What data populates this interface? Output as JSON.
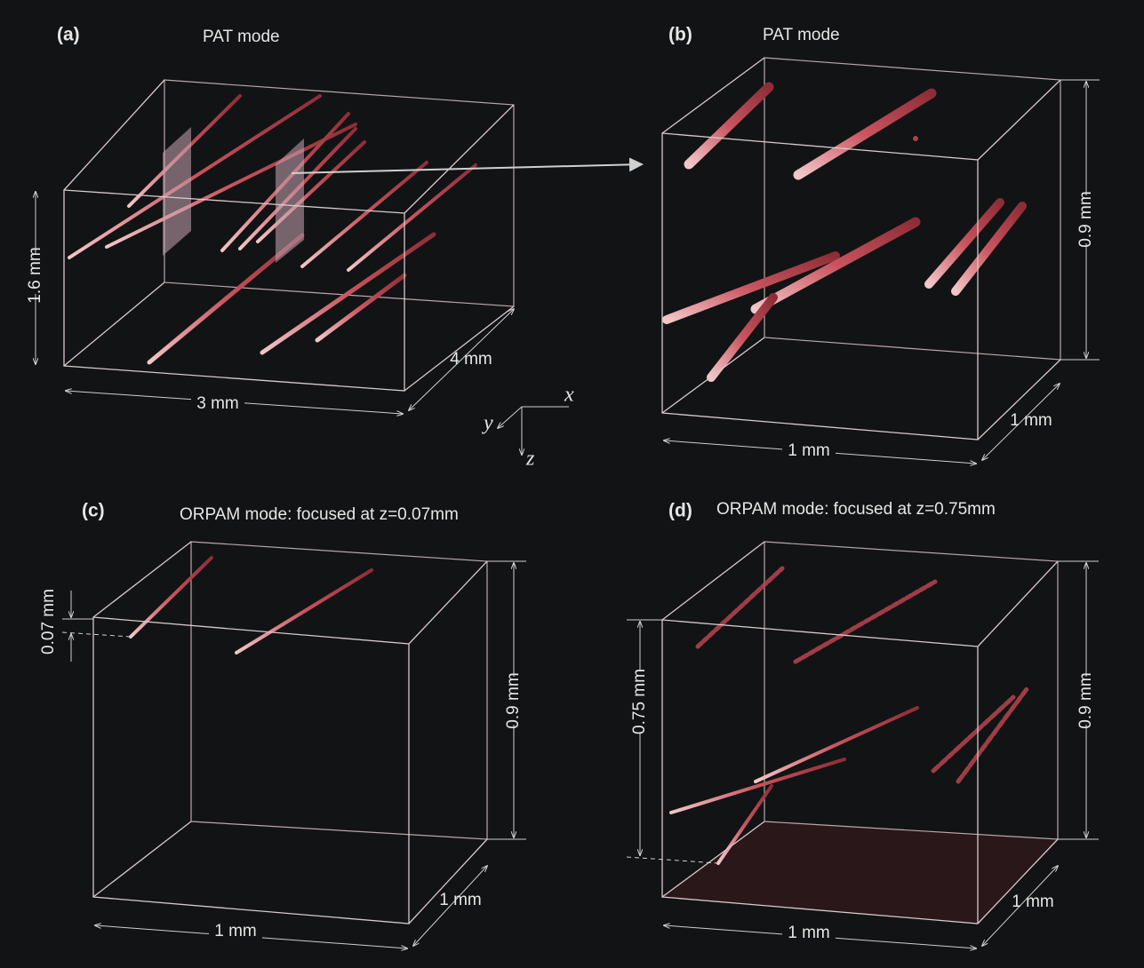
{
  "panels": [
    {
      "label": "(a)",
      "title": "PAT mode",
      "dims": [
        "1.6 mm",
        "3 mm",
        "4 mm"
      ]
    },
    {
      "label": "(b)",
      "title": "PAT mode",
      "dims": [
        "0.9 mm",
        "1 mm",
        "1 mm"
      ]
    },
    {
      "label": "(c)",
      "title": "ORPAM mode: focused at z=0.07mm",
      "dims": [
        "0.07 mm",
        "0.9 mm",
        "1 mm",
        "1 mm"
      ]
    },
    {
      "label": "(d)",
      "title": "ORPAM mode: focused at z=0.75mm",
      "dims": [
        "0.75 mm",
        "0.9 mm",
        "1 mm",
        "1 mm"
      ]
    }
  ],
  "axes": {
    "x": "x",
    "y": "y",
    "z": "z"
  }
}
